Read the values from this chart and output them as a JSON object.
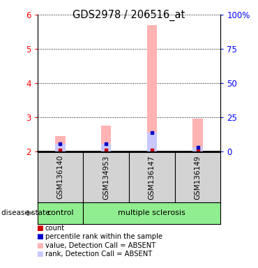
{
  "title": "GDS2978 / 206516_at",
  "samples": [
    "GSM136140",
    "GSM134953",
    "GSM136147",
    "GSM136149"
  ],
  "ylim_left": [
    2,
    6
  ],
  "ylim_right": [
    0,
    100
  ],
  "yticks_left": [
    2,
    3,
    4,
    5,
    6
  ],
  "yticks_right": [
    0,
    25,
    50,
    75,
    100
  ],
  "ytick_labels_right": [
    "0",
    "25",
    "50",
    "75",
    "100%"
  ],
  "value_absent": [
    2.45,
    2.75,
    5.7,
    2.95
  ],
  "rank_absent": [
    2.22,
    2.22,
    2.55,
    2.12
  ],
  "count_vals": [
    2.05,
    2.03,
    2.03,
    2.03
  ],
  "percentile_vals": [
    2.22,
    2.22,
    2.55,
    2.12
  ],
  "color_value_absent": "#ffb3b3",
  "color_rank_absent": "#c8c8ff",
  "color_count": "#cc0000",
  "color_percentile": "#0000cc",
  "gray_bg": "#d3d3d3",
  "green_bg": "#90ee90",
  "disease_state_label": "disease state",
  "control_label": "control",
  "ms_label": "multiple sclerosis",
  "legend_items": [
    [
      "#cc0000",
      "count"
    ],
    [
      "#0000cc",
      "percentile rank within the sample"
    ],
    [
      "#ffb3b3",
      "value, Detection Call = ABSENT"
    ],
    [
      "#c8c8ff",
      "rank, Detection Call = ABSENT"
    ]
  ]
}
